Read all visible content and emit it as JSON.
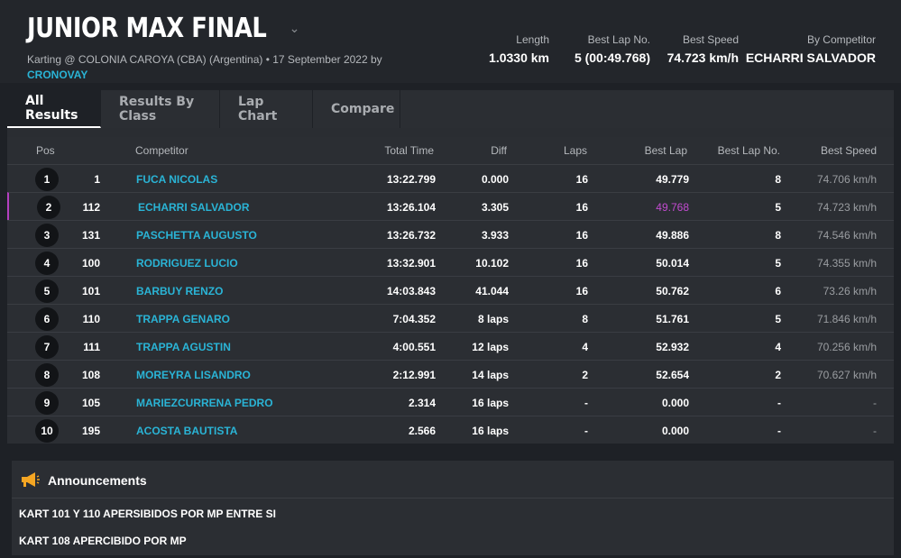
{
  "header": {
    "title": "JUNIOR MAX FINAL",
    "subtitle": "Karting @ COLONIA CAROYA (CBA) (Argentina) • 17 September 2022 by",
    "timing_link": "CRONOVAY",
    "stats": [
      {
        "label": "Length",
        "value": "1.0330 km"
      },
      {
        "label": "Best Lap No.",
        "value": "5 (00:49.768)"
      },
      {
        "label": "Best Speed",
        "value": "74.723 km/h"
      },
      {
        "label": "By Competitor",
        "value": "ECHARRI SALVADOR"
      }
    ]
  },
  "tabs": [
    "All Results",
    "Results By Class",
    "Lap Chart",
    "Compare"
  ],
  "table": {
    "headers": {
      "pos": "Pos",
      "competitor": "Competitor",
      "total_time": "Total Time",
      "diff": "Diff",
      "laps": "Laps",
      "best_lap": "Best Lap",
      "best_lap_no": "Best Lap No.",
      "best_speed": "Best Speed"
    },
    "rows": [
      {
        "pos": "1",
        "num": "1",
        "name": "FUCA NICOLAS",
        "total": "13:22.799",
        "diff": "0.000",
        "laps": "16",
        "best_lap": "49.779",
        "best_lap_no": "8",
        "speed": "74.706 km/h"
      },
      {
        "pos": "2",
        "num": "112",
        "name": "ECHARRI SALVADOR",
        "total": "13:26.104",
        "diff": "3.305",
        "laps": "16",
        "best_lap": "49.768",
        "best_lap_no": "5",
        "speed": "74.723 km/h"
      },
      {
        "pos": "3",
        "num": "131",
        "name": "PASCHETTA AUGUSTO",
        "total": "13:26.732",
        "diff": "3.933",
        "laps": "16",
        "best_lap": "49.886",
        "best_lap_no": "8",
        "speed": "74.546 km/h"
      },
      {
        "pos": "4",
        "num": "100",
        "name": "RODRIGUEZ LUCIO",
        "total": "13:32.901",
        "diff": "10.102",
        "laps": "16",
        "best_lap": "50.014",
        "best_lap_no": "5",
        "speed": "74.355 km/h"
      },
      {
        "pos": "5",
        "num": "101",
        "name": "BARBUY RENZO",
        "total": "14:03.843",
        "diff": "41.044",
        "laps": "16",
        "best_lap": "50.762",
        "best_lap_no": "6",
        "speed": "73.26 km/h"
      },
      {
        "pos": "6",
        "num": "110",
        "name": "TRAPPA GENARO",
        "total": "7:04.352",
        "diff": "8 laps",
        "laps": "8",
        "best_lap": "51.761",
        "best_lap_no": "5",
        "speed": "71.846 km/h"
      },
      {
        "pos": "7",
        "num": "111",
        "name": "TRAPPA AGUSTIN",
        "total": "4:00.551",
        "diff": "12 laps",
        "laps": "4",
        "best_lap": "52.932",
        "best_lap_no": "4",
        "speed": "70.256 km/h"
      },
      {
        "pos": "8",
        "num": "108",
        "name": "MOREYRA LISANDRO",
        "total": "2:12.991",
        "diff": "14 laps",
        "laps": "2",
        "best_lap": "52.654",
        "best_lap_no": "2",
        "speed": "70.627 km/h"
      },
      {
        "pos": "9",
        "num": "105",
        "name": "MARIEZCURRENA PEDRO",
        "total": "2.314",
        "diff": "16 laps",
        "laps": "-",
        "best_lap": "0.000",
        "best_lap_no": "-",
        "speed": "-"
      },
      {
        "pos": "10",
        "num": "195",
        "name": "ACOSTA BAUTISTA",
        "total": "2.566",
        "diff": "16 laps",
        "laps": "-",
        "best_lap": "0.000",
        "best_lap_no": "-",
        "speed": "-"
      }
    ]
  },
  "announcements": {
    "title": "Announcements",
    "icon": "megaphone-icon",
    "items": [
      "KART 101 Y 110 APERSIBIDOS POR MP ENTRE SI",
      "KART 108 APERCIBIDO POR MP"
    ]
  },
  "colors": {
    "background": "#1e2126",
    "panel": "#2b2e33",
    "link": "#2ab4d6",
    "best_lap_highlight": "#c24bd0",
    "accent_megaphone": "#f5a623"
  }
}
